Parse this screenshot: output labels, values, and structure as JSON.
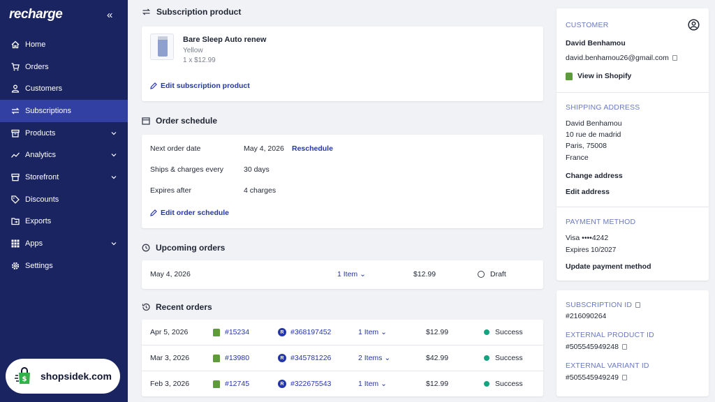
{
  "sidebar": {
    "logo": "recharge",
    "collapse_icon": "double-chevron-left-icon",
    "items": [
      {
        "label": "Home",
        "icon": "home-icon"
      },
      {
        "label": "Orders",
        "icon": "cart-icon"
      },
      {
        "label": "Customers",
        "icon": "person-icon"
      },
      {
        "label": "Subscriptions",
        "icon": "repeat-icon",
        "active": true
      },
      {
        "label": "Products",
        "icon": "box-icon",
        "chevron": true
      },
      {
        "label": "Analytics",
        "icon": "trend-icon",
        "chevron": true
      },
      {
        "label": "Storefront",
        "icon": "store-icon",
        "chevron": true
      },
      {
        "label": "Discounts",
        "icon": "tag-icon"
      },
      {
        "label": "Exports",
        "icon": "export-icon"
      },
      {
        "label": "Apps",
        "icon": "grid-icon",
        "chevron": true
      },
      {
        "label": "Settings",
        "icon": "gear-icon"
      }
    ],
    "watermark": "shopsidek.com"
  },
  "subscription_product": {
    "title": "Subscription product",
    "product_name": "Bare Sleep Auto renew",
    "variant": "Yellow",
    "qty_price": "1 x $12.99",
    "edit_link": "Edit subscription product"
  },
  "order_schedule": {
    "title": "Order schedule",
    "rows": [
      {
        "label": "Next order date",
        "value": "May 4, 2026",
        "action": "Reschedule"
      },
      {
        "label": "Ships & charges every",
        "value": "30 days"
      },
      {
        "label": "Expires after",
        "value": "4 charges"
      }
    ],
    "edit_link": "Edit order schedule"
  },
  "upcoming_orders": {
    "title": "Upcoming orders",
    "rows": [
      {
        "date": "May 4, 2026",
        "items": "1 Item",
        "price": "$12.99",
        "status": "Draft"
      }
    ]
  },
  "recent_orders": {
    "title": "Recent orders",
    "rows": [
      {
        "date": "Apr 5, 2026",
        "shopify_id": "#15234",
        "recharge_id": "#368197452",
        "items": "1 Item",
        "price": "$12.99",
        "status": "Success"
      },
      {
        "date": "Mar 3, 2026",
        "shopify_id": "#13980",
        "recharge_id": "#345781226",
        "items": "2 Items",
        "price": "$42.99",
        "status": "Success"
      },
      {
        "date": "Feb 3, 2026",
        "shopify_id": "#12745",
        "recharge_id": "#322675543",
        "items": "1 Item",
        "price": "$12.99",
        "status": "Success"
      }
    ]
  },
  "customer": {
    "label": "CUSTOMER",
    "name": "David Benhamou",
    "email": "david.benhamou26@gmail.com",
    "view_link": "View in Shopify",
    "shipping_label": "SHIPPING ADDRESS",
    "address": [
      "David Benhamou",
      "10 rue de madrid",
      "Paris, 75008",
      "France"
    ],
    "change_address": "Change address",
    "edit_address": "Edit address",
    "payment_label": "PAYMENT METHOD",
    "card": "Visa ••••4242",
    "expires": "Expires 10/2027",
    "update_payment": "Update payment method"
  },
  "ids": {
    "subscription_label": "SUBSCRIPTION ID",
    "subscription_id": "#216090264",
    "product_label": "EXTERNAL PRODUCT ID",
    "product_id": "#505545949248",
    "variant_label": "EXTERNAL VARIANT ID",
    "variant_id": "#505545949249"
  },
  "colors": {
    "sidebar_bg": "#1a2461",
    "active_item": "#3240a3",
    "link": "#2536a8",
    "success": "#14a37f"
  }
}
